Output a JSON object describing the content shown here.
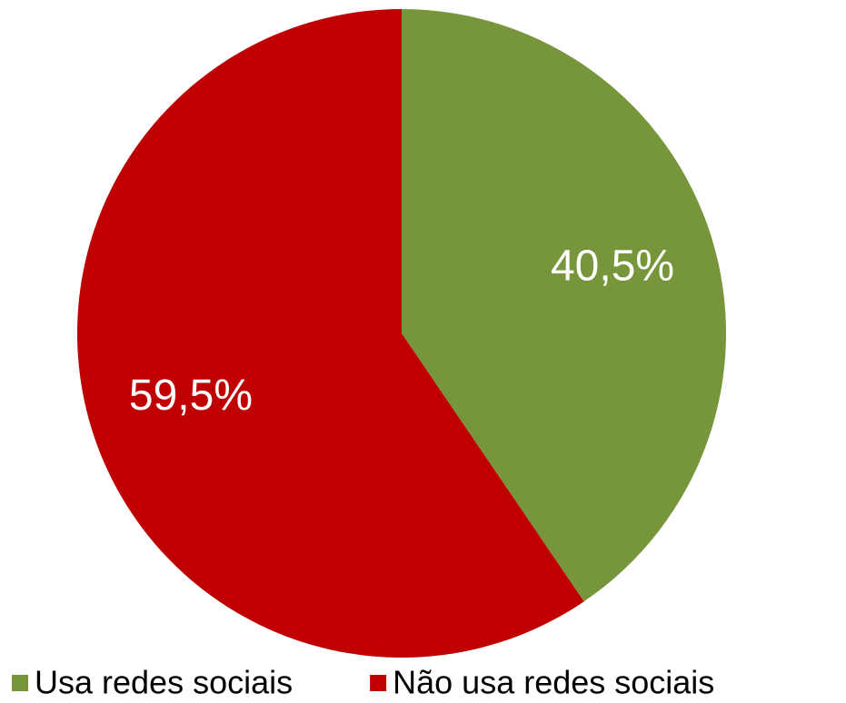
{
  "chart_data": {
    "type": "pie",
    "categories": [
      "Usa redes sociais",
      "Não usa redes sociais"
    ],
    "values": [
      40.5,
      59.5
    ],
    "value_labels": [
      "40,5%",
      "59,5%"
    ],
    "colors": [
      "#77963b",
      "#c00000"
    ],
    "legend": "bottom"
  }
}
